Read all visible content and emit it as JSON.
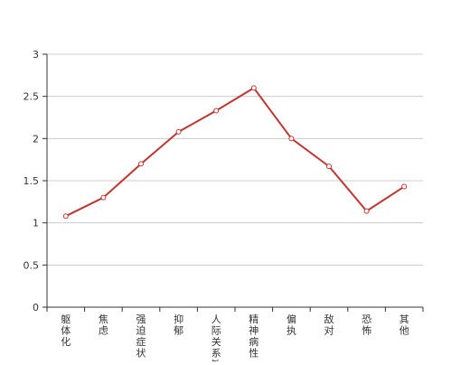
{
  "chart_data": {
    "type": "line",
    "categories": [
      "躯体化",
      "焦虑",
      "强迫症状",
      "抑郁",
      "人际关系敏感",
      "精神病性",
      "偏执",
      "敌对",
      "恐怖",
      "其他"
    ],
    "series": [
      {
        "values": [
          1.08,
          1.3,
          1.7,
          2.08,
          2.33,
          2.6,
          2.0,
          1.67,
          1.14,
          1.43
        ]
      }
    ],
    "y_ticks": [
      "0",
      "0.5",
      "1",
      "1.5",
      "2",
      "2.5",
      "3"
    ],
    "ylim": [
      0,
      3
    ],
    "grid": true,
    "colors": {
      "line": "#c23531",
      "axis": "#333333",
      "grid": "#cccccc",
      "text": "#333333"
    }
  }
}
